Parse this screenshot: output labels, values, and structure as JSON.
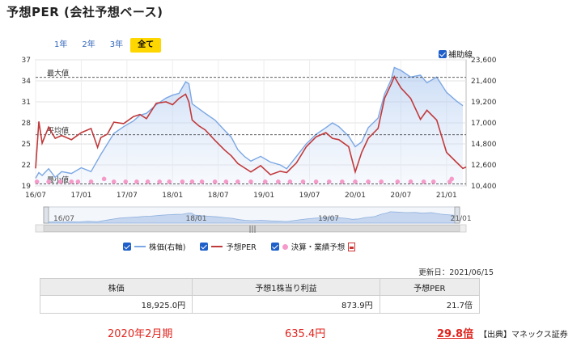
{
  "title": "予想PER (会社予想ベース)",
  "range_buttons": [
    "1年",
    "2年",
    "3年",
    "全て"
  ],
  "range_active": 3,
  "aux_line_label": "補助線",
  "colors": {
    "price": "#7ba7e4",
    "per": "#c0393b",
    "earnings": "#f59bc9",
    "accent": "#ffd700",
    "check": "#1f5fc9"
  },
  "chart_data": {
    "type": "line",
    "x_ticks": [
      "16/07",
      "17/01",
      "17/07",
      "18/01",
      "18/07",
      "19/01",
      "19/07",
      "20/01",
      "20/07",
      "21/01"
    ],
    "y_left_ticks": [
      "37",
      "34",
      "31",
      "28",
      "25",
      "22",
      "19"
    ],
    "y_left_range": [
      19,
      37
    ],
    "y_right_ticks": [
      "23,600",
      "21,400",
      "19,200",
      "17,000",
      "14,800",
      "12,600",
      "10,400"
    ],
    "y_right_range": [
      10400,
      23600
    ],
    "reference_lines": [
      {
        "label": "最大値",
        "value": 34.5
      },
      {
        "label": "平均値",
        "value": 26.3
      },
      {
        "label": "最小値",
        "value": 19.3
      }
    ],
    "series": [
      {
        "name": "株価(右軸)",
        "axis": "right",
        "values": [
          [
            0,
            11200
          ],
          [
            0.05,
            11800
          ],
          [
            0.1,
            11500
          ],
          [
            0.2,
            12200
          ],
          [
            0.3,
            11300
          ],
          [
            0.4,
            11900
          ],
          [
            0.55,
            11700
          ],
          [
            0.7,
            12300
          ],
          [
            0.85,
            11900
          ],
          [
            1.0,
            13700
          ],
          [
            1.1,
            14800
          ],
          [
            1.2,
            15900
          ],
          [
            1.35,
            16600
          ],
          [
            1.5,
            17200
          ],
          [
            1.6,
            17800
          ],
          [
            1.7,
            18000
          ],
          [
            1.85,
            18900
          ],
          [
            2.0,
            19600
          ],
          [
            2.1,
            19900
          ],
          [
            2.2,
            20100
          ],
          [
            2.3,
            21300
          ],
          [
            2.35,
            21100
          ],
          [
            2.4,
            19000
          ],
          [
            2.5,
            18500
          ],
          [
            2.6,
            18000
          ],
          [
            2.75,
            17300
          ],
          [
            2.9,
            16200
          ],
          [
            3.0,
            15500
          ],
          [
            3.1,
            14200
          ],
          [
            3.2,
            13500
          ],
          [
            3.3,
            13000
          ],
          [
            3.45,
            13500
          ],
          [
            3.6,
            12900
          ],
          [
            3.75,
            12600
          ],
          [
            3.85,
            12200
          ],
          [
            4.0,
            13500
          ],
          [
            4.15,
            14800
          ],
          [
            4.3,
            15800
          ],
          [
            4.45,
            16500
          ],
          [
            4.55,
            17000
          ],
          [
            4.65,
            16600
          ],
          [
            4.8,
            15600
          ],
          [
            4.9,
            14500
          ],
          [
            5.0,
            15000
          ],
          [
            5.1,
            16500
          ],
          [
            5.25,
            17500
          ],
          [
            5.35,
            20000
          ],
          [
            5.45,
            21500
          ],
          [
            5.5,
            22800
          ],
          [
            5.6,
            22500
          ],
          [
            5.75,
            21800
          ],
          [
            5.9,
            22000
          ],
          [
            6.0,
            21200
          ],
          [
            6.15,
            21800
          ],
          [
            6.3,
            20200
          ],
          [
            6.45,
            19300
          ],
          [
            6.55,
            18800
          ]
        ]
      },
      {
        "name": "予想PER",
        "axis": "left",
        "values": [
          [
            0,
            21.5
          ],
          [
            0.05,
            28.2
          ],
          [
            0.1,
            25.1
          ],
          [
            0.2,
            27.4
          ],
          [
            0.3,
            25.8
          ],
          [
            0.4,
            26.2
          ],
          [
            0.55,
            25.6
          ],
          [
            0.7,
            26.6
          ],
          [
            0.85,
            27.2
          ],
          [
            0.95,
            24.5
          ],
          [
            1.0,
            25.9
          ],
          [
            1.1,
            26.4
          ],
          [
            1.2,
            28.1
          ],
          [
            1.35,
            27.9
          ],
          [
            1.5,
            28.9
          ],
          [
            1.6,
            29.2
          ],
          [
            1.7,
            28.6
          ],
          [
            1.85,
            30.8
          ],
          [
            2.0,
            31.0
          ],
          [
            2.1,
            30.6
          ],
          [
            2.2,
            31.5
          ],
          [
            2.3,
            32.1
          ],
          [
            2.35,
            31.0
          ],
          [
            2.4,
            28.4
          ],
          [
            2.5,
            27.6
          ],
          [
            2.6,
            27.0
          ],
          [
            2.75,
            25.5
          ],
          [
            2.9,
            24.1
          ],
          [
            3.0,
            23.3
          ],
          [
            3.1,
            22.2
          ],
          [
            3.2,
            21.6
          ],
          [
            3.3,
            21.0
          ],
          [
            3.45,
            21.9
          ],
          [
            3.6,
            20.6
          ],
          [
            3.75,
            21.1
          ],
          [
            3.85,
            20.9
          ],
          [
            4.0,
            22.3
          ],
          [
            4.15,
            24.6
          ],
          [
            4.3,
            26.0
          ],
          [
            4.45,
            26.6
          ],
          [
            4.55,
            25.8
          ],
          [
            4.65,
            25.6
          ],
          [
            4.8,
            24.6
          ],
          [
            4.9,
            21.0
          ],
          [
            5.0,
            23.8
          ],
          [
            5.1,
            25.8
          ],
          [
            5.25,
            27.2
          ],
          [
            5.35,
            31.5
          ],
          [
            5.45,
            33.5
          ],
          [
            5.5,
            34.6
          ],
          [
            5.6,
            33.0
          ],
          [
            5.75,
            31.5
          ],
          [
            5.9,
            28.5
          ],
          [
            6.0,
            29.8
          ],
          [
            6.15,
            28.4
          ],
          [
            6.3,
            23.8
          ],
          [
            6.45,
            22.4
          ],
          [
            6.55,
            21.5
          ],
          [
            6.6,
            21.7
          ]
        ]
      },
      {
        "name": "決算・業績予想",
        "axis": "left",
        "values": [
          [
            0.02,
            19.6
          ],
          [
            0.2,
            19.6
          ],
          [
            0.38,
            19.6
          ],
          [
            0.55,
            19.6
          ],
          [
            0.65,
            19.6
          ],
          [
            0.85,
            19.6
          ],
          [
            1.05,
            20.0
          ],
          [
            1.2,
            19.6
          ],
          [
            1.38,
            19.6
          ],
          [
            1.55,
            19.6
          ],
          [
            1.72,
            19.6
          ],
          [
            1.9,
            19.6
          ],
          [
            2.05,
            19.6
          ],
          [
            2.25,
            19.6
          ],
          [
            2.4,
            19.6
          ],
          [
            2.55,
            19.6
          ],
          [
            2.75,
            19.6
          ],
          [
            2.92,
            19.6
          ],
          [
            3.1,
            19.6
          ],
          [
            3.3,
            19.6
          ],
          [
            3.52,
            19.6
          ],
          [
            3.72,
            19.6
          ],
          [
            3.9,
            19.6
          ],
          [
            4.1,
            19.6
          ],
          [
            4.3,
            19.6
          ],
          [
            4.5,
            19.6
          ],
          [
            4.7,
            19.6
          ],
          [
            4.9,
            19.6
          ],
          [
            5.1,
            19.6
          ],
          [
            5.3,
            19.6
          ],
          [
            5.55,
            19.6
          ],
          [
            5.75,
            19.6
          ],
          [
            5.95,
            19.6
          ],
          [
            6.1,
            19.6
          ],
          [
            6.35,
            19.6
          ],
          [
            6.38,
            20.0
          ]
        ]
      }
    ],
    "navigator_ticks": [
      "16/07",
      "18/01",
      "19/07",
      "21/01"
    ]
  },
  "legend": {
    "price": "株価(右軸)",
    "per": "予想PER",
    "earnings": "決算・業績予想"
  },
  "updated": "更新日：2021/06/15",
  "table": {
    "headers": [
      "株価",
      "予想1株当り利益",
      "予想PER"
    ],
    "values": [
      "18,925.0円",
      "873.9円",
      "21.7倍"
    ]
  },
  "bottom": {
    "period": "2020年2月期",
    "eps": "635.4円",
    "per": "29.8倍",
    "source": "【出典】マネックス証券"
  }
}
